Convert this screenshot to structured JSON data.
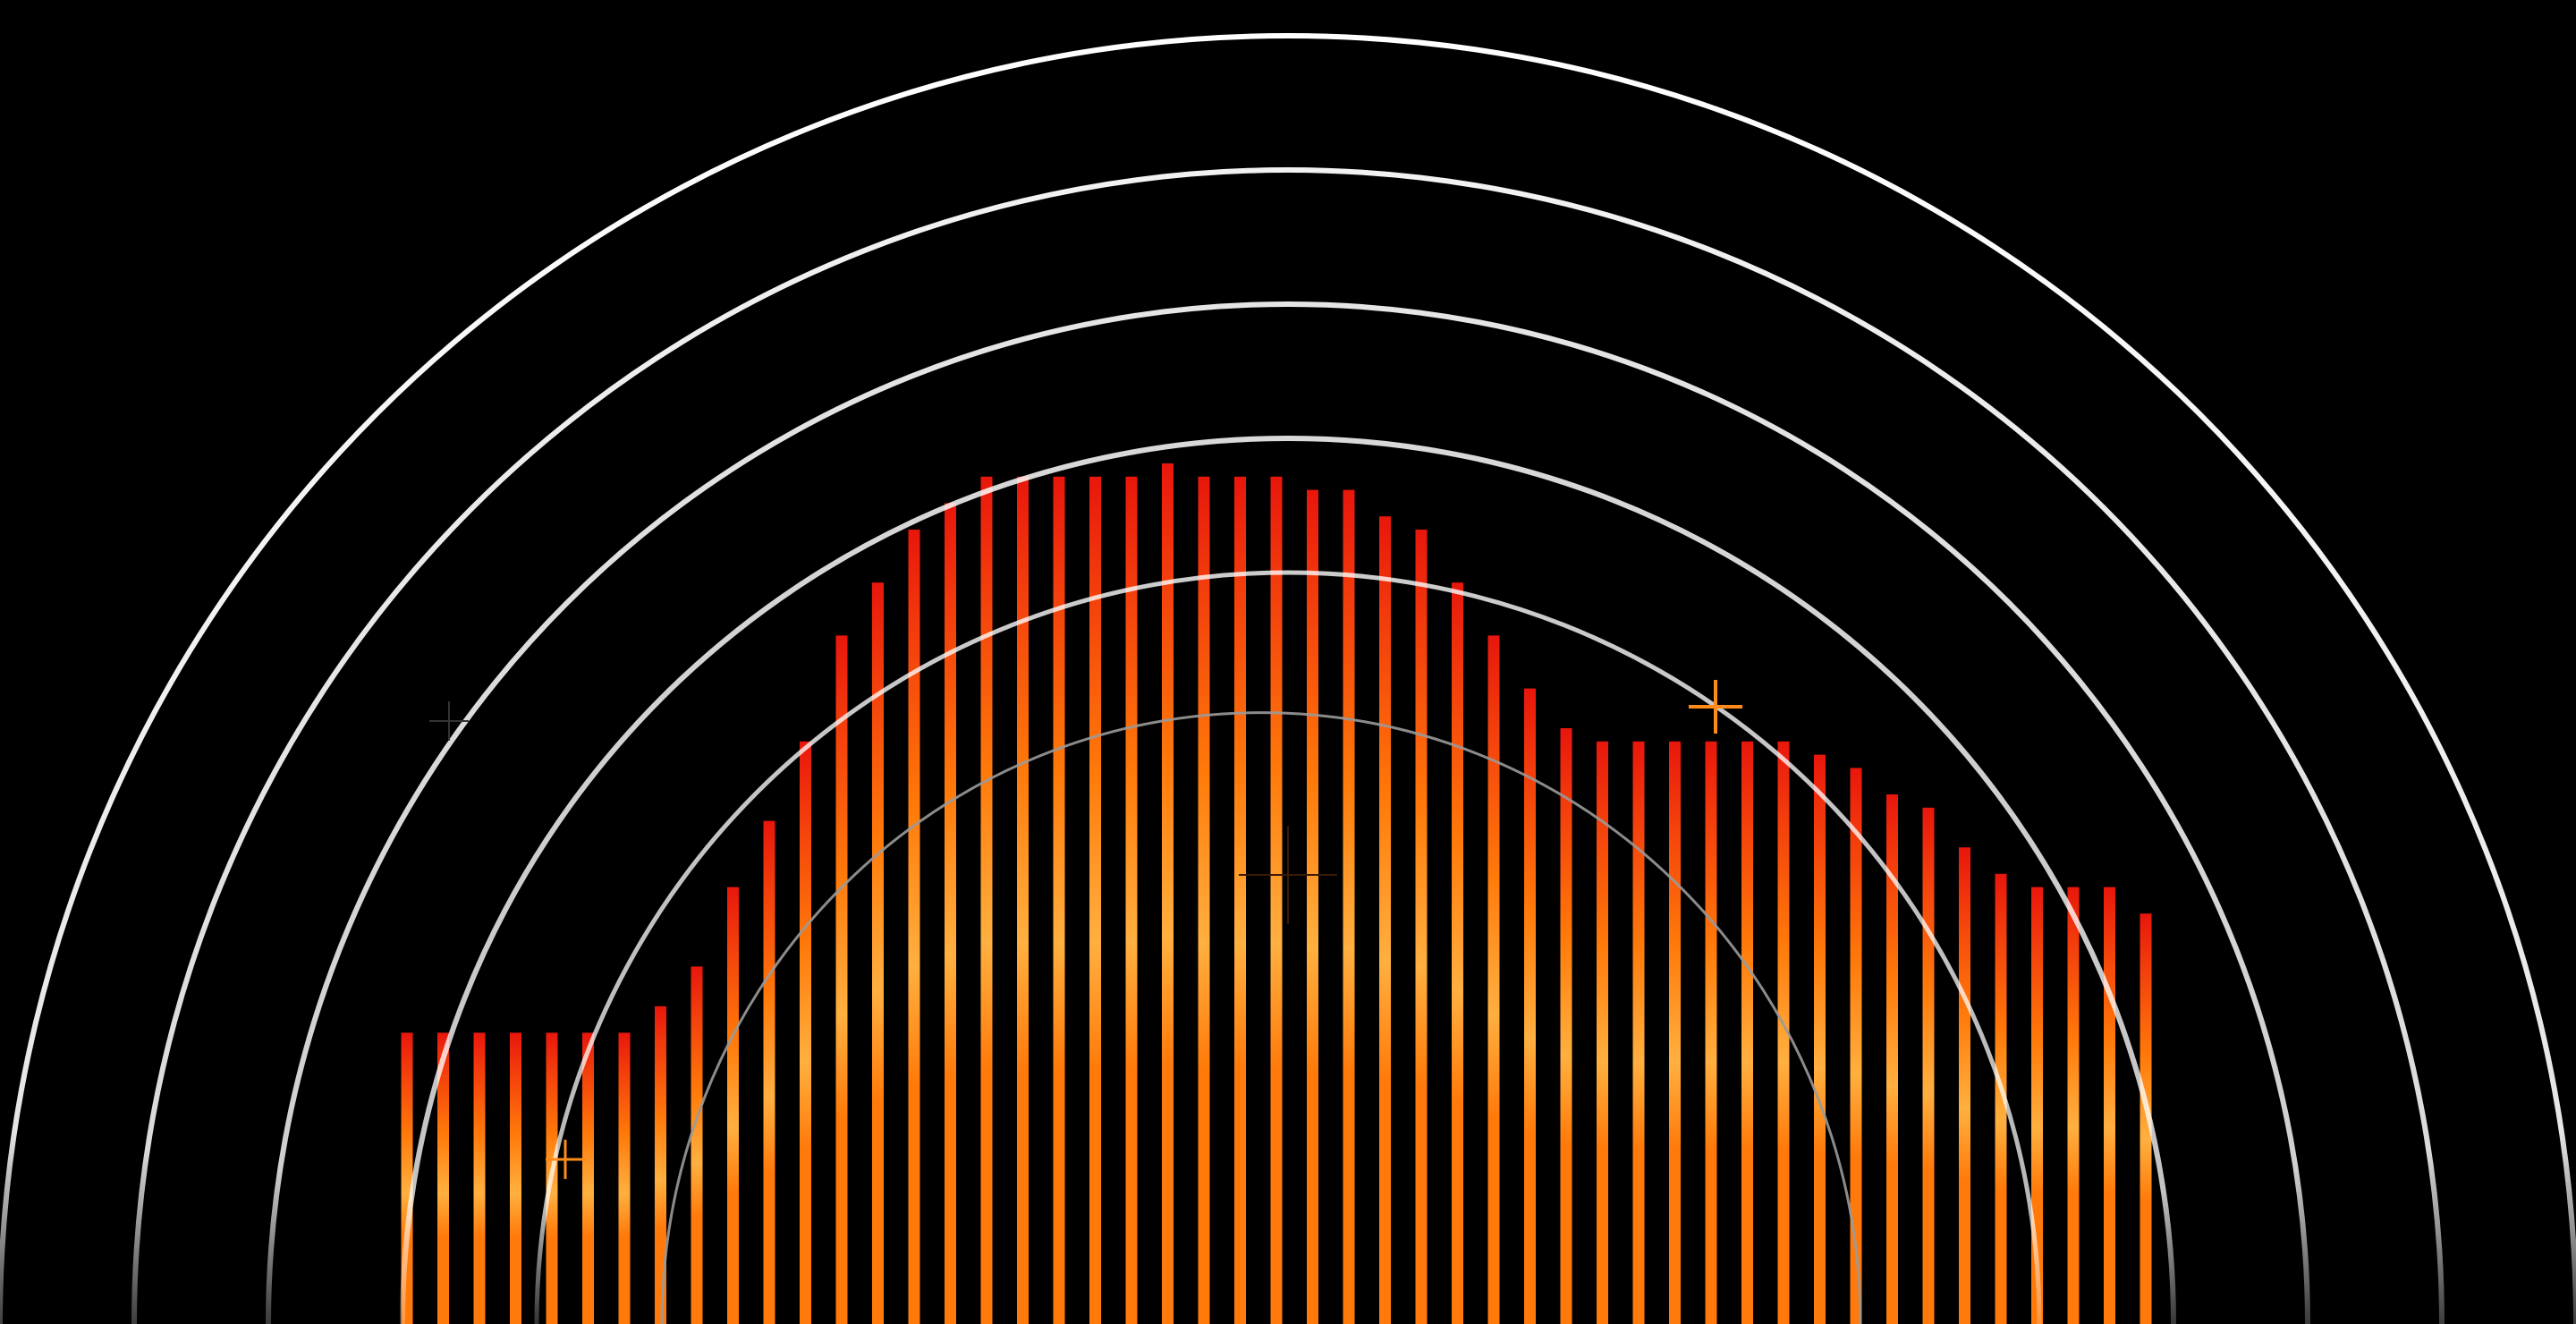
{
  "scene": {
    "background": "#000000",
    "colors": {
      "arc": "#ffffff",
      "bar_base": "#ff7a0a",
      "bar_top": "#e8160c",
      "bar_glow": "#ffb040",
      "marker": "#ff8c1a",
      "thin_arc": "#9a9a9a"
    },
    "arc_count": 5,
    "bars": {
      "count": 49,
      "levels": [
        0.22,
        0.22,
        0.22,
        0.22,
        0.22,
        0.22,
        0.22,
        0.24,
        0.27,
        0.33,
        0.38,
        0.44,
        0.52,
        0.56,
        0.6,
        0.62,
        0.64,
        0.64,
        0.64,
        0.64,
        0.64,
        0.65,
        0.64,
        0.64,
        0.64,
        0.63,
        0.63,
        0.61,
        0.6,
        0.56,
        0.52,
        0.48,
        0.45,
        0.44,
        0.44,
        0.44,
        0.44,
        0.44,
        0.44,
        0.43,
        0.42,
        0.4,
        0.39,
        0.36,
        0.34,
        0.33,
        0.33,
        0.33,
        0.31
      ]
    },
    "markers": [
      {
        "icon": "crosshair-icon"
      },
      {
        "icon": "crosshair-icon"
      },
      {
        "icon": "crosshair-icon"
      },
      {
        "icon": "crosshair-icon"
      }
    ]
  }
}
